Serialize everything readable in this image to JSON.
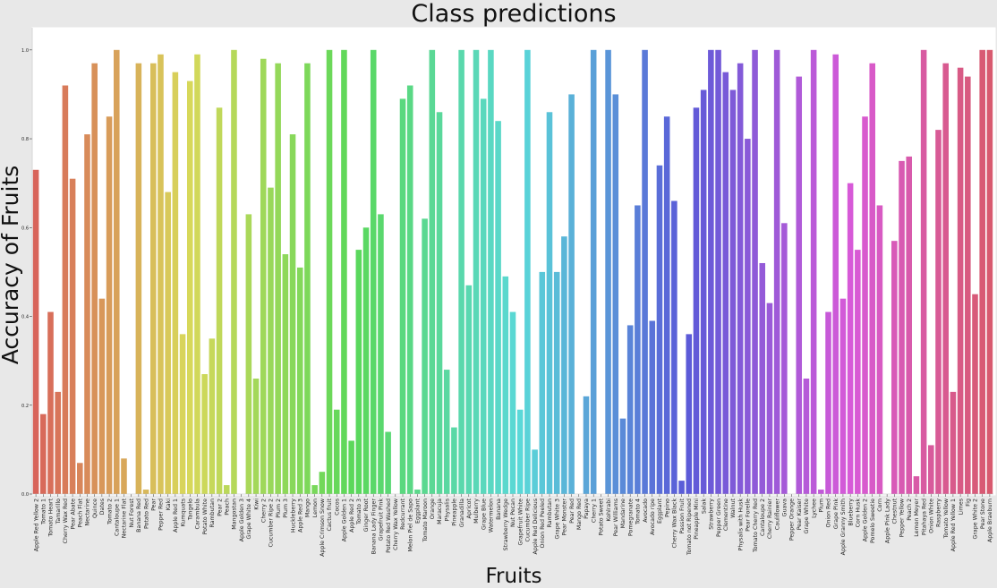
{
  "chart_data": {
    "type": "bar",
    "title": "Class predictions",
    "xlabel": "Fruits",
    "ylabel": "Accuracy of Fruits",
    "ylim": [
      0,
      1.05
    ],
    "yticks": [
      "0.0",
      "0.2",
      "0.4",
      "0.6",
      "0.8",
      "1.0"
    ],
    "grid": false,
    "categories": [
      "Apple Red Yellow 2",
      "Tomato 1",
      "Tomato Heart",
      "Tamarillo",
      "Cherry Wax Red",
      "Pear Abate",
      "Peach Flat",
      "Nectarine",
      "Quince",
      "Dates",
      "Tomato 2",
      "Cantaloupe 1",
      "Nectarine Flat",
      "Nut Forest",
      "Banana Red",
      "Potato Red",
      "Pear",
      "Pepper Red",
      "Kaki",
      "Apple Red 1",
      "Kumquats",
      "Tangelo",
      "Carambula",
      "Potato White",
      "Rambutan",
      "Pear 2",
      "Peach",
      "Mangostan",
      "Apple Golden 3",
      "Grape White 4",
      "Kiwi",
      "Cherry 2",
      "Cucumber Ripe 2",
      "Plum 2",
      "Plum 3",
      "Huckleberry",
      "Apple Red 3",
      "Mango",
      "Lemon",
      "Apple Crimson Snow",
      "Cactus fruit",
      "Cocos",
      "Apple Golden 1",
      "Apple Red 2",
      "Tomato 3",
      "Ginger Root",
      "Banana Lady Finger",
      "Grapefruit Pink",
      "Potato Red Washed",
      "Cherry Wax Yellow",
      "Redcurrant",
      "Melon Piel de Sapo",
      "Eggplant",
      "Tomato Maroon",
      "Orange",
      "Maracuja",
      "Physalis",
      "Pineapple",
      "Granadilla",
      "Apricot",
      "Mulberry",
      "Grape Blue",
      "Watermelon",
      "Banana",
      "Strawberry Wedge",
      "Nut Pecan",
      "Grapefruit White",
      "Cucumber Ripe",
      "Apple Red Delicious",
      "Onion Red Peeled",
      "Rambutan",
      "Grape White 3",
      "Pear Monster",
      "Pear Red",
      "Mango Red",
      "Papaya",
      "Cherry 1",
      "Potato Sweet",
      "Kohlrabi",
      "Pear Williams",
      "Mandarine",
      "Pomegranate",
      "Tomato 4",
      "Avocado",
      "Avocado ripe",
      "Eggplant",
      "Pepino",
      "Cherry Wax Black",
      "Passion Fruit",
      "Tomato not Ripened",
      "Pineapple Mini",
      "Salak",
      "Strawberry",
      "Pepper Green",
      "Clementine",
      "Walnut",
      "Physalis with Husk",
      "Pear Forelle",
      "Tomato Cherry Red",
      "Cantaloupe 2",
      "Cherry Rainier",
      "Cauliflower",
      "Guava",
      "Pepper Orange",
      "Pear Kaiser",
      "Grape White",
      "Lychee",
      "Plum",
      "Onion Red",
      "Grape Pink",
      "Apple Granny Smith",
      "Blueberry",
      "Corn Husk",
      "Apple Golden 2",
      "Pomelo Sweetie",
      "Corn",
      "Apple Pink Lady",
      "Chestnut",
      "Pepper Yellow",
      "Peach 2",
      "Lemon Meyer",
      "Pitahaya Red",
      "Onion White",
      "Raspberry",
      "Tomato Yellow",
      "Apple Red Yellow 1",
      "Limes",
      "Fig",
      "Grape White 2",
      "Pear Stone",
      "Apple Braeburn"
    ],
    "values": [
      0.73,
      0.18,
      0.41,
      0.23,
      0.92,
      0.71,
      0.07,
      0.81,
      0.97,
      0.44,
      0.85,
      1.0,
      0.08,
      0.0,
      0.97,
      0.01,
      0.97,
      0.99,
      0.68,
      0.95,
      0.36,
      0.93,
      0.99,
      0.27,
      0.35,
      0.87,
      0.02,
      1.0,
      0.0,
      0.63,
      0.26,
      0.98,
      0.69,
      0.97,
      0.54,
      0.81,
      0.51,
      0.97,
      0.02,
      0.05,
      1.0,
      0.19,
      1.0,
      0.12,
      0.55,
      0.6,
      1.0,
      0.63,
      0.14,
      0.0,
      0.89,
      0.92,
      0.01,
      0.62,
      1.0,
      0.86,
      0.28,
      0.15,
      1.0,
      0.47,
      1.0,
      0.89,
      1.0,
      0.84,
      0.49,
      0.41,
      0.19,
      1.0,
      0.1,
      0.5,
      0.86,
      0.5,
      0.58,
      0.9,
      0.0,
      0.22,
      1.0,
      0.0,
      1.0,
      0.9,
      0.17,
      0.38,
      0.65,
      1.0,
      0.39,
      0.74,
      0.85,
      0.66,
      0.03,
      0.36,
      0.87,
      0.91,
      1.0,
      1.0,
      0.95,
      0.91,
      0.97,
      0.8,
      1.0,
      0.52,
      0.43,
      1.0,
      0.61,
      0.0,
      0.94,
      0.26,
      1.0,
      0.01,
      0.41,
      0.99,
      0.44,
      0.7,
      0.55,
      0.85,
      0.97,
      0.65,
      0.0,
      0.57,
      0.75,
      0.76,
      0.04,
      1.0,
      0.11,
      0.82,
      0.97,
      0.23,
      0.96,
      0.94,
      0.45,
      1.0,
      1.0
    ]
  }
}
